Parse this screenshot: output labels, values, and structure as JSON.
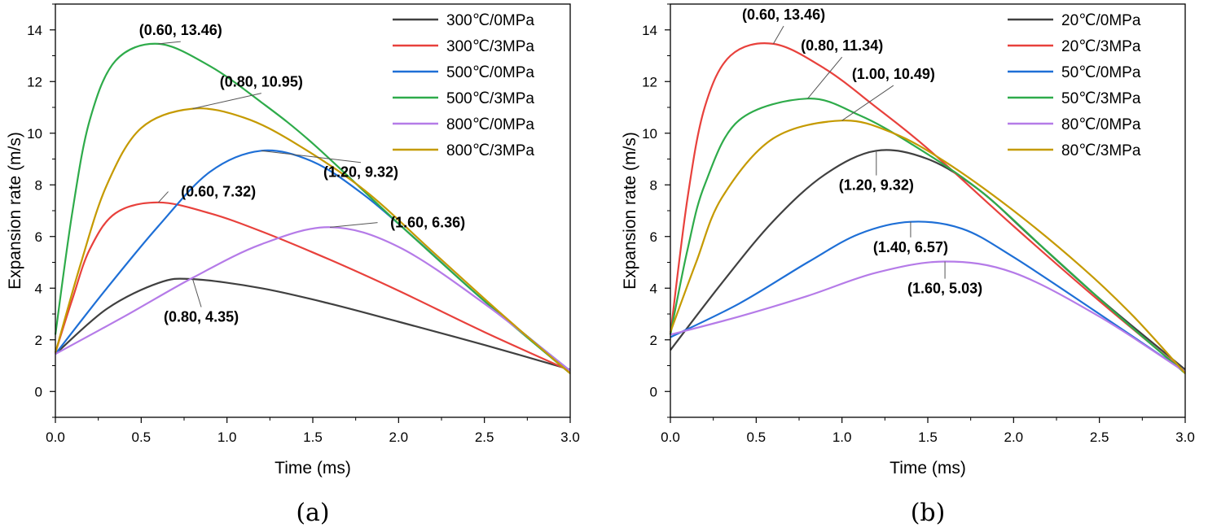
{
  "chart_data": [
    {
      "type": "line",
      "caption": "(a)",
      "xlabel": "Time (ms)",
      "ylabel": "Expansion rate (m/s)",
      "xlim": [
        0,
        3.0
      ],
      "ylim": [
        -1,
        15
      ],
      "xticks": [
        0,
        0.5,
        1.0,
        1.5,
        2.0,
        2.5,
        3.0
      ],
      "xtick_labels": [
        "0.0",
        "0.5",
        "1.0",
        "1.5",
        "2.0",
        "2.5",
        "3.0"
      ],
      "yticks": [
        0,
        2,
        4,
        6,
        8,
        10,
        12,
        14
      ],
      "ytick_labels": [
        "0",
        "2",
        "4",
        "6",
        "8",
        "10",
        "12",
        "14"
      ],
      "legend_position": "top-right",
      "series": [
        {
          "name": "300℃/0MPa",
          "color": "#404040",
          "x": [
            0,
            0.3,
            0.6,
            0.8,
            1.2,
            1.6,
            2.0,
            2.5,
            3.0
          ],
          "y": [
            1.45,
            3.2,
            4.2,
            4.35,
            4.0,
            3.4,
            2.7,
            1.8,
            0.85
          ]
        },
        {
          "name": "300℃/3MPa",
          "color": "#e8413c",
          "x": [
            0,
            0.1,
            0.2,
            0.35,
            0.6,
            0.9,
            1.2,
            1.6,
            2.0,
            2.5,
            3.0
          ],
          "y": [
            1.5,
            3.6,
            5.5,
            6.9,
            7.32,
            6.9,
            6.2,
            5.1,
            3.9,
            2.3,
            0.8
          ]
        },
        {
          "name": "500℃/0MPa",
          "color": "#1e6fd6",
          "x": [
            0,
            0.3,
            0.6,
            0.9,
            1.2,
            1.5,
            1.8,
            2.1,
            2.5,
            3.0
          ],
          "y": [
            1.45,
            4.0,
            6.4,
            8.5,
            9.32,
            8.9,
            7.6,
            5.9,
            3.5,
            0.8
          ]
        },
        {
          "name": "500℃/3MPa",
          "color": "#2eab4a",
          "x": [
            0,
            0.1,
            0.2,
            0.35,
            0.6,
            0.9,
            1.2,
            1.5,
            2.0,
            2.5,
            3.0
          ],
          "y": [
            2.2,
            7.0,
            10.5,
            12.8,
            13.46,
            12.6,
            11.2,
            9.6,
            6.5,
            3.5,
            0.7
          ]
        },
        {
          "name": "800℃/0MPa",
          "color": "#b57be8",
          "x": [
            0,
            0.4,
            0.8,
            1.2,
            1.6,
            2.0,
            2.5,
            3.0
          ],
          "y": [
            1.45,
            2.9,
            4.4,
            5.7,
            6.36,
            5.6,
            3.4,
            0.8
          ]
        },
        {
          "name": "800℃/3MPa",
          "color": "#c59a00",
          "x": [
            0,
            0.15,
            0.3,
            0.5,
            0.8,
            1.1,
            1.4,
            1.8,
            2.2,
            2.6,
            3.0
          ],
          "y": [
            1.5,
            5.0,
            8.0,
            10.2,
            10.95,
            10.6,
            9.6,
            7.8,
            5.4,
            3.0,
            0.7
          ]
        }
      ],
      "annotations": [
        {
          "text": "(0.60, 13.46)",
          "point": [
            0.6,
            13.46
          ],
          "at": [
            0.73,
            13.8
          ]
        },
        {
          "text": "(0.80, 10.95)",
          "point": [
            0.8,
            10.95
          ],
          "at": [
            1.2,
            11.8
          ]
        },
        {
          "text": "(1.20, 9.32)",
          "point": [
            1.2,
            9.32
          ],
          "at": [
            1.78,
            8.3
          ]
        },
        {
          "text": "(0.60, 7.32)",
          "point": [
            0.6,
            7.32
          ],
          "at": [
            0.95,
            7.55
          ]
        },
        {
          "text": "(1.60, 6.36)",
          "point": [
            1.6,
            6.36
          ],
          "at": [
            2.17,
            6.35
          ]
        },
        {
          "text": "(0.80, 4.35)",
          "point": [
            0.8,
            4.35
          ],
          "at": [
            0.85,
            2.7
          ]
        }
      ]
    },
    {
      "type": "line",
      "caption": "(b)",
      "xlabel": "Time (ms)",
      "ylabel": "Expansion rate (m/s)",
      "xlim": [
        0,
        3.0
      ],
      "ylim": [
        -1,
        15
      ],
      "xticks": [
        0,
        0.5,
        1.0,
        1.5,
        2.0,
        2.5,
        3.0
      ],
      "xtick_labels": [
        "0.0",
        "0.5",
        "1.0",
        "1.5",
        "2.0",
        "2.5",
        "3.0"
      ],
      "yticks": [
        0,
        2,
        4,
        6,
        8,
        10,
        12,
        14
      ],
      "ytick_labels": [
        "0",
        "2",
        "4",
        "6",
        "8",
        "10",
        "12",
        "14"
      ],
      "legend_position": "top-right",
      "series": [
        {
          "name": "20℃/0MPa",
          "color": "#404040",
          "x": [
            0,
            0.3,
            0.6,
            0.9,
            1.2,
            1.5,
            1.8,
            2.1,
            2.5,
            3.0
          ],
          "y": [
            1.6,
            4.2,
            6.6,
            8.4,
            9.32,
            9.0,
            7.8,
            6.0,
            3.6,
            0.85
          ]
        },
        {
          "name": "20℃/3MPa",
          "color": "#e8413c",
          "x": [
            0,
            0.1,
            0.2,
            0.35,
            0.6,
            0.9,
            1.2,
            1.5,
            2.0,
            2.5,
            3.0
          ],
          "y": [
            2.2,
            7.5,
            11.0,
            13.0,
            13.46,
            12.5,
            11.0,
            9.4,
            6.4,
            3.5,
            0.75
          ]
        },
        {
          "name": "50℃/0MPa",
          "color": "#1e6fd6",
          "x": [
            0,
            0.4,
            0.8,
            1.1,
            1.4,
            1.7,
            2.0,
            2.5,
            3.0
          ],
          "y": [
            2.1,
            3.4,
            5.0,
            6.1,
            6.57,
            6.3,
            5.2,
            3.0,
            0.75
          ]
        },
        {
          "name": "50℃/3MPa",
          "color": "#2eab4a",
          "x": [
            0,
            0.1,
            0.2,
            0.4,
            0.8,
            1.1,
            1.4,
            1.8,
            2.2,
            2.6,
            3.0
          ],
          "y": [
            2.2,
            5.5,
            8.0,
            10.5,
            11.34,
            10.7,
            9.6,
            7.8,
            5.4,
            3.0,
            0.7
          ]
        },
        {
          "name": "80℃/0MPa",
          "color": "#b57be8",
          "x": [
            0,
            0.4,
            0.8,
            1.2,
            1.6,
            2.0,
            2.5,
            3.0
          ],
          "y": [
            2.2,
            2.9,
            3.7,
            4.6,
            5.03,
            4.6,
            2.9,
            0.75
          ]
        },
        {
          "name": "80℃/3MPa",
          "color": "#c59a00",
          "x": [
            0,
            0.15,
            0.3,
            0.6,
            1.0,
            1.3,
            1.6,
            2.0,
            2.4,
            2.7,
            3.0
          ],
          "y": [
            2.3,
            5.0,
            7.5,
            9.8,
            10.49,
            10.0,
            8.9,
            7.0,
            4.8,
            2.9,
            0.7
          ]
        }
      ],
      "annotations": [
        {
          "text": "(0.60, 13.46)",
          "point": [
            0.6,
            13.46
          ],
          "at": [
            0.66,
            14.4
          ]
        },
        {
          "text": "(0.80, 11.34)",
          "point": [
            0.8,
            11.34
          ],
          "at": [
            1.0,
            13.2
          ]
        },
        {
          "text": "(1.00, 10.49)",
          "point": [
            1.0,
            10.49
          ],
          "at": [
            1.3,
            12.1
          ]
        },
        {
          "text": "(1.20, 9.32)",
          "point": [
            1.2,
            9.32
          ],
          "at": [
            1.2,
            7.8
          ]
        },
        {
          "text": "(1.40, 6.57)",
          "point": [
            1.4,
            6.57
          ],
          "at": [
            1.4,
            5.4
          ]
        },
        {
          "text": "(1.60, 5.03)",
          "point": [
            1.6,
            5.03
          ],
          "at": [
            1.6,
            3.8
          ]
        }
      ]
    }
  ]
}
